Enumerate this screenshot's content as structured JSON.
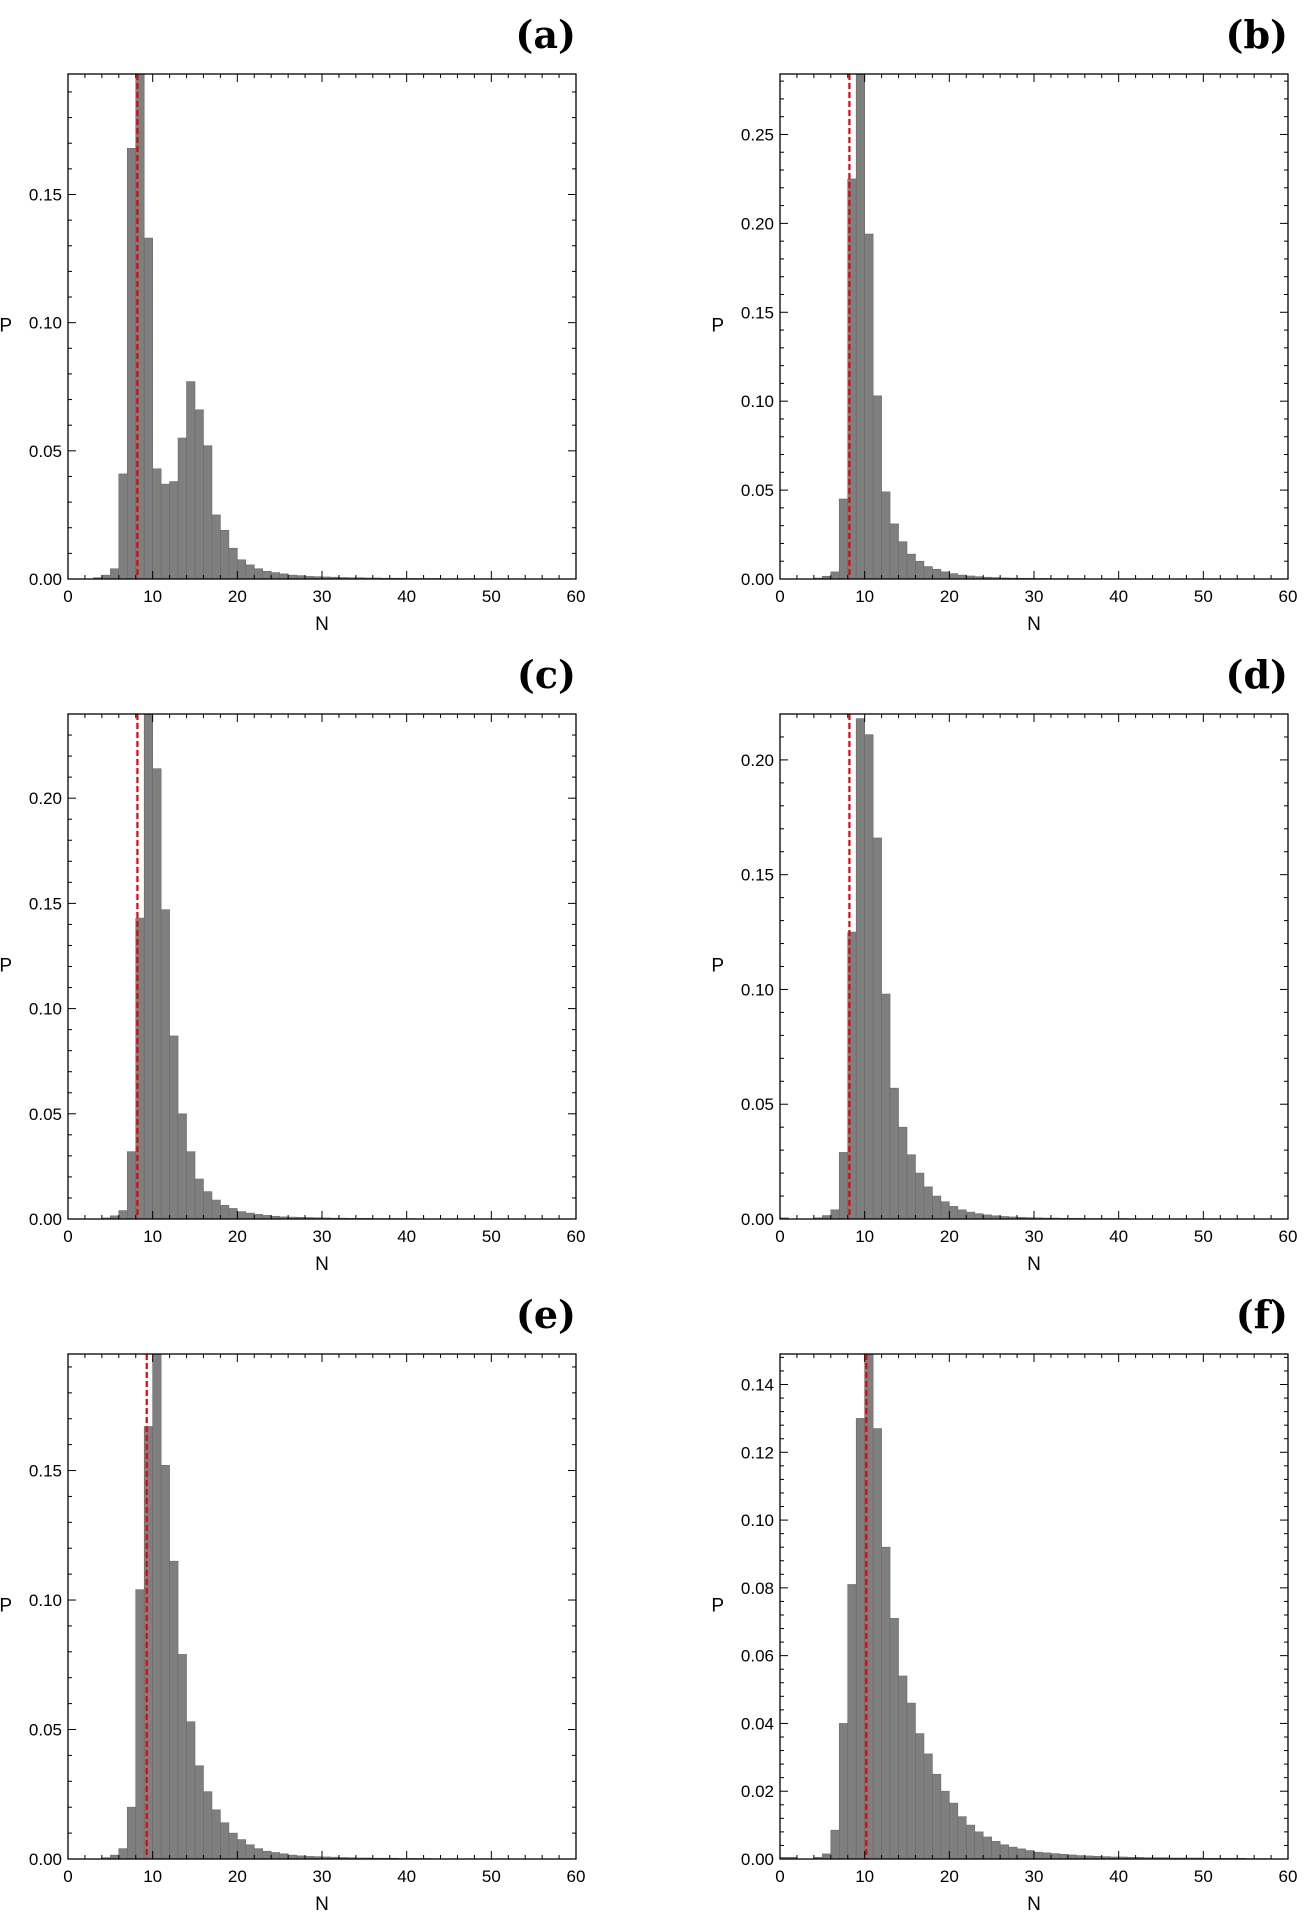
{
  "chart_data": [
    {
      "type": "bar",
      "panel_label": "(a)",
      "xlabel": "N",
      "ylabel": "P",
      "xlim": [
        0,
        60
      ],
      "ylim": [
        0,
        0.197
      ],
      "x_ticks": [
        "0",
        "10",
        "20",
        "30",
        "40",
        "50",
        "60"
      ],
      "y_ticks": [
        {
          "value": 0,
          "label": "0.00"
        },
        {
          "value": 0.05,
          "label": "0.05"
        },
        {
          "value": 0.1,
          "label": "0.10"
        },
        {
          "value": 0.15,
          "label": "0.15"
        }
      ],
      "bin_start": 0,
      "bin_width": 1,
      "values": [
        0,
        0,
        0,
        0.0005,
        0.0015,
        0.004,
        0.041,
        0.168,
        0.197,
        0.133,
        0.043,
        0.037,
        0.038,
        0.055,
        0.077,
        0.066,
        0.052,
        0.025,
        0.019,
        0.012,
        0.0075,
        0.0055,
        0.004,
        0.003,
        0.0025,
        0.002,
        0.0015,
        0.0013,
        0.001,
        0.0009,
        0.0008,
        0.0007,
        0.0006,
        0.0005,
        0.0005,
        0.0004,
        0.0004,
        0.0003,
        0.0003,
        0.0003,
        0.0002,
        0.0002,
        0.0002,
        0.0002,
        0.0001,
        0.0001,
        0.0001,
        0.0001,
        0.0001,
        0.0001,
        0.0001,
        0.0001,
        0.0001,
        0.0001,
        0,
        0,
        0,
        0,
        0,
        0
      ],
      "mean_line_x": 8.2,
      "line_color": "#e8000b",
      "bar_color": "#7f7f7f"
    },
    {
      "type": "bar",
      "panel_label": "(b)",
      "xlabel": "N",
      "ylabel": "P",
      "xlim": [
        0,
        60
      ],
      "ylim": [
        0,
        0.284
      ],
      "x_ticks": [
        "0",
        "10",
        "20",
        "30",
        "40",
        "50",
        "60"
      ],
      "y_ticks": [
        {
          "value": 0,
          "label": "0.00"
        },
        {
          "value": 0.05,
          "label": "0.05"
        },
        {
          "value": 0.1,
          "label": "0.10"
        },
        {
          "value": 0.15,
          "label": "0.15"
        },
        {
          "value": 0.2,
          "label": "0.20"
        },
        {
          "value": 0.25,
          "label": "0.25"
        }
      ],
      "bin_start": 0,
      "bin_width": 1,
      "values": [
        0,
        0,
        0,
        0,
        0.0005,
        0.0015,
        0.004,
        0.045,
        0.225,
        0.284,
        0.194,
        0.103,
        0.049,
        0.031,
        0.021,
        0.014,
        0.01,
        0.007,
        0.0055,
        0.004,
        0.003,
        0.0022,
        0.0017,
        0.0013,
        0.001,
        0.0008,
        0.0006,
        0.0005,
        0.0004,
        0.0004,
        0.0003,
        0.0003,
        0.0002,
        0.0002,
        0.0002,
        0.0002,
        0.0001,
        0.0001,
        0.0001,
        0.0001,
        0.0001,
        0.0001,
        0.0001,
        0.0001,
        0.0001,
        0.0001,
        0,
        0,
        0,
        0,
        0,
        0,
        0,
        0,
        0,
        0,
        0,
        0,
        0,
        0
      ],
      "mean_line_x": 8.2,
      "line_color": "#e8000b",
      "bar_color": "#7f7f7f"
    },
    {
      "type": "bar",
      "panel_label": "(c)",
      "xlabel": "N",
      "ylabel": "P",
      "xlim": [
        0,
        60
      ],
      "ylim": [
        0,
        0.24
      ],
      "x_ticks": [
        "0",
        "10",
        "20",
        "30",
        "40",
        "50",
        "60"
      ],
      "y_ticks": [
        {
          "value": 0,
          "label": "0.00"
        },
        {
          "value": 0.05,
          "label": "0.05"
        },
        {
          "value": 0.1,
          "label": "0.10"
        },
        {
          "value": 0.15,
          "label": "0.15"
        },
        {
          "value": 0.2,
          "label": "0.20"
        }
      ],
      "bin_start": 0,
      "bin_width": 1,
      "values": [
        0,
        0,
        0,
        0,
        0.0005,
        0.0015,
        0.004,
        0.032,
        0.143,
        0.24,
        0.214,
        0.147,
        0.087,
        0.05,
        0.032,
        0.019,
        0.013,
        0.009,
        0.0065,
        0.005,
        0.0035,
        0.0028,
        0.0022,
        0.0017,
        0.0013,
        0.001,
        0.0009,
        0.0008,
        0.0007,
        0.0006,
        0.0005,
        0.0004,
        0.0004,
        0.0003,
        0.0003,
        0.0003,
        0.0002,
        0.0002,
        0.0002,
        0.0002,
        0.0002,
        0.0001,
        0.0001,
        0.0001,
        0.0001,
        0.0001,
        0.0001,
        0.0001,
        0.0001,
        0.0001,
        0.0001,
        0.0001,
        0,
        0,
        0,
        0,
        0,
        0,
        0,
        0
      ],
      "mean_line_x": 8.2,
      "line_color": "#e8000b",
      "bar_color": "#7f7f7f"
    },
    {
      "type": "bar",
      "panel_label": "(d)",
      "xlabel": "N",
      "ylabel": "P",
      "xlim": [
        0,
        60
      ],
      "ylim": [
        0,
        0.22
      ],
      "x_ticks": [
        "0",
        "10",
        "20",
        "30",
        "40",
        "50",
        "60"
      ],
      "y_ticks": [
        {
          "value": 0,
          "label": "0.00"
        },
        {
          "value": 0.05,
          "label": "0.05"
        },
        {
          "value": 0.1,
          "label": "0.10"
        },
        {
          "value": 0.15,
          "label": "0.15"
        },
        {
          "value": 0.2,
          "label": "0.20"
        }
      ],
      "bin_start": 0,
      "bin_width": 1,
      "values": [
        0.0005,
        0,
        0,
        0,
        0.0005,
        0.0015,
        0.004,
        0.029,
        0.125,
        0.218,
        0.211,
        0.166,
        0.098,
        0.057,
        0.04,
        0.028,
        0.02,
        0.014,
        0.01,
        0.0075,
        0.0055,
        0.004,
        0.003,
        0.0023,
        0.0018,
        0.0014,
        0.0011,
        0.0009,
        0.0007,
        0.0006,
        0.0005,
        0.0004,
        0.0004,
        0.0003,
        0.0003,
        0.0003,
        0.0002,
        0.0002,
        0.0002,
        0.0002,
        0.0002,
        0.0001,
        0.0001,
        0.0001,
        0.0001,
        0.0001,
        0.0001,
        0.0001,
        0.0001,
        0.0001,
        0.0001,
        0,
        0,
        0,
        0,
        0,
        0,
        0,
        0,
        0
      ],
      "mean_line_x": 8.2,
      "line_color": "#e8000b",
      "bar_color": "#7f7f7f"
    },
    {
      "type": "bar",
      "panel_label": "(e)",
      "xlabel": "N",
      "ylabel": "P",
      "xlim": [
        0,
        60
      ],
      "ylim": [
        0,
        0.195
      ],
      "x_ticks": [
        "0",
        "10",
        "20",
        "30",
        "40",
        "50",
        "60"
      ],
      "y_ticks": [
        {
          "value": 0,
          "label": "0.00"
        },
        {
          "value": 0.05,
          "label": "0.05"
        },
        {
          "value": 0.1,
          "label": "0.10"
        },
        {
          "value": 0.15,
          "label": "0.15"
        }
      ],
      "bin_start": 0,
      "bin_width": 1,
      "values": [
        0,
        0,
        0,
        0,
        0.0005,
        0.0015,
        0.004,
        0.02,
        0.104,
        0.167,
        0.195,
        0.152,
        0.115,
        0.079,
        0.053,
        0.036,
        0.026,
        0.019,
        0.014,
        0.01,
        0.0075,
        0.0055,
        0.004,
        0.003,
        0.0025,
        0.002,
        0.0015,
        0.0012,
        0.001,
        0.0009,
        0.0008,
        0.0007,
        0.0006,
        0.0005,
        0.0004,
        0.0004,
        0.0003,
        0.0003,
        0.0003,
        0.0002,
        0.0002,
        0.0002,
        0.0002,
        0.0001,
        0.0001,
        0.0001,
        0.0001,
        0.0001,
        0.0001,
        0.0001,
        0.0001,
        0.0001,
        0.0001,
        0,
        0,
        0,
        0,
        0,
        0,
        0
      ],
      "mean_line_x": 9.3,
      "line_color": "#e8000b",
      "bar_color": "#7f7f7f"
    },
    {
      "type": "bar",
      "panel_label": "(f)",
      "xlabel": "N",
      "ylabel": "P",
      "xlim": [
        0,
        60
      ],
      "ylim": [
        0,
        0.149
      ],
      "x_ticks": [
        "0",
        "10",
        "20",
        "30",
        "40",
        "50",
        "60"
      ],
      "y_ticks": [
        {
          "value": 0,
          "label": "0.00"
        },
        {
          "value": 0.02,
          "label": "0.02"
        },
        {
          "value": 0.04,
          "label": "0.04"
        },
        {
          "value": 0.06,
          "label": "0.06"
        },
        {
          "value": 0.08,
          "label": "0.08"
        },
        {
          "value": 0.1,
          "label": "0.10"
        },
        {
          "value": 0.12,
          "label": "0.12"
        },
        {
          "value": 0.14,
          "label": "0.14"
        }
      ],
      "bin_start": 0,
      "bin_width": 1,
      "values": [
        0.0005,
        0.0005,
        0,
        0,
        0.0005,
        0.0015,
        0.0085,
        0.04,
        0.081,
        0.13,
        0.149,
        0.127,
        0.092,
        0.071,
        0.054,
        0.046,
        0.037,
        0.031,
        0.025,
        0.02,
        0.0165,
        0.0125,
        0.01,
        0.008,
        0.0065,
        0.0052,
        0.0042,
        0.0035,
        0.003,
        0.0025,
        0.002,
        0.0018,
        0.0016,
        0.0014,
        0.0012,
        0.001,
        0.0009,
        0.0008,
        0.0007,
        0.0006,
        0.0006,
        0.0005,
        0.0005,
        0.0004,
        0.0004,
        0.0004,
        0.0003,
        0.0003,
        0.0003,
        0.0003,
        0.0002,
        0.0002,
        0.0002,
        0.0002,
        0.0002,
        0.0001,
        0.0001,
        0.0001,
        0,
        0
      ],
      "mean_line_x": 10.2,
      "line_color": "#e8000b",
      "bar_color": "#7f7f7f"
    }
  ]
}
